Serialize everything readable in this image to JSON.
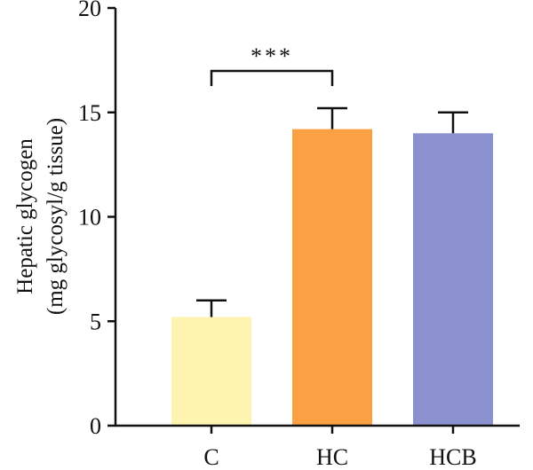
{
  "chart_data": {
    "type": "bar",
    "categories": [
      "C",
      "HC",
      "HCB"
    ],
    "series": [
      {
        "values": [
          5.2,
          14.2,
          14.0
        ],
        "error": [
          0.8,
          1.0,
          1.0
        ],
        "colors": [
          "#FFF3B0",
          "#FBA043",
          "#8B90CF"
        ]
      }
    ],
    "ylabel_line1": "Hepatic glycogen",
    "ylabel_line2": "(mg glycosyl/g tissue)",
    "ylim": [
      0,
      20
    ],
    "yticks": [
      0,
      5,
      10,
      15,
      20
    ],
    "grid": false,
    "significance": [
      {
        "from": "C",
        "to": "HC",
        "label": "***"
      }
    ]
  }
}
